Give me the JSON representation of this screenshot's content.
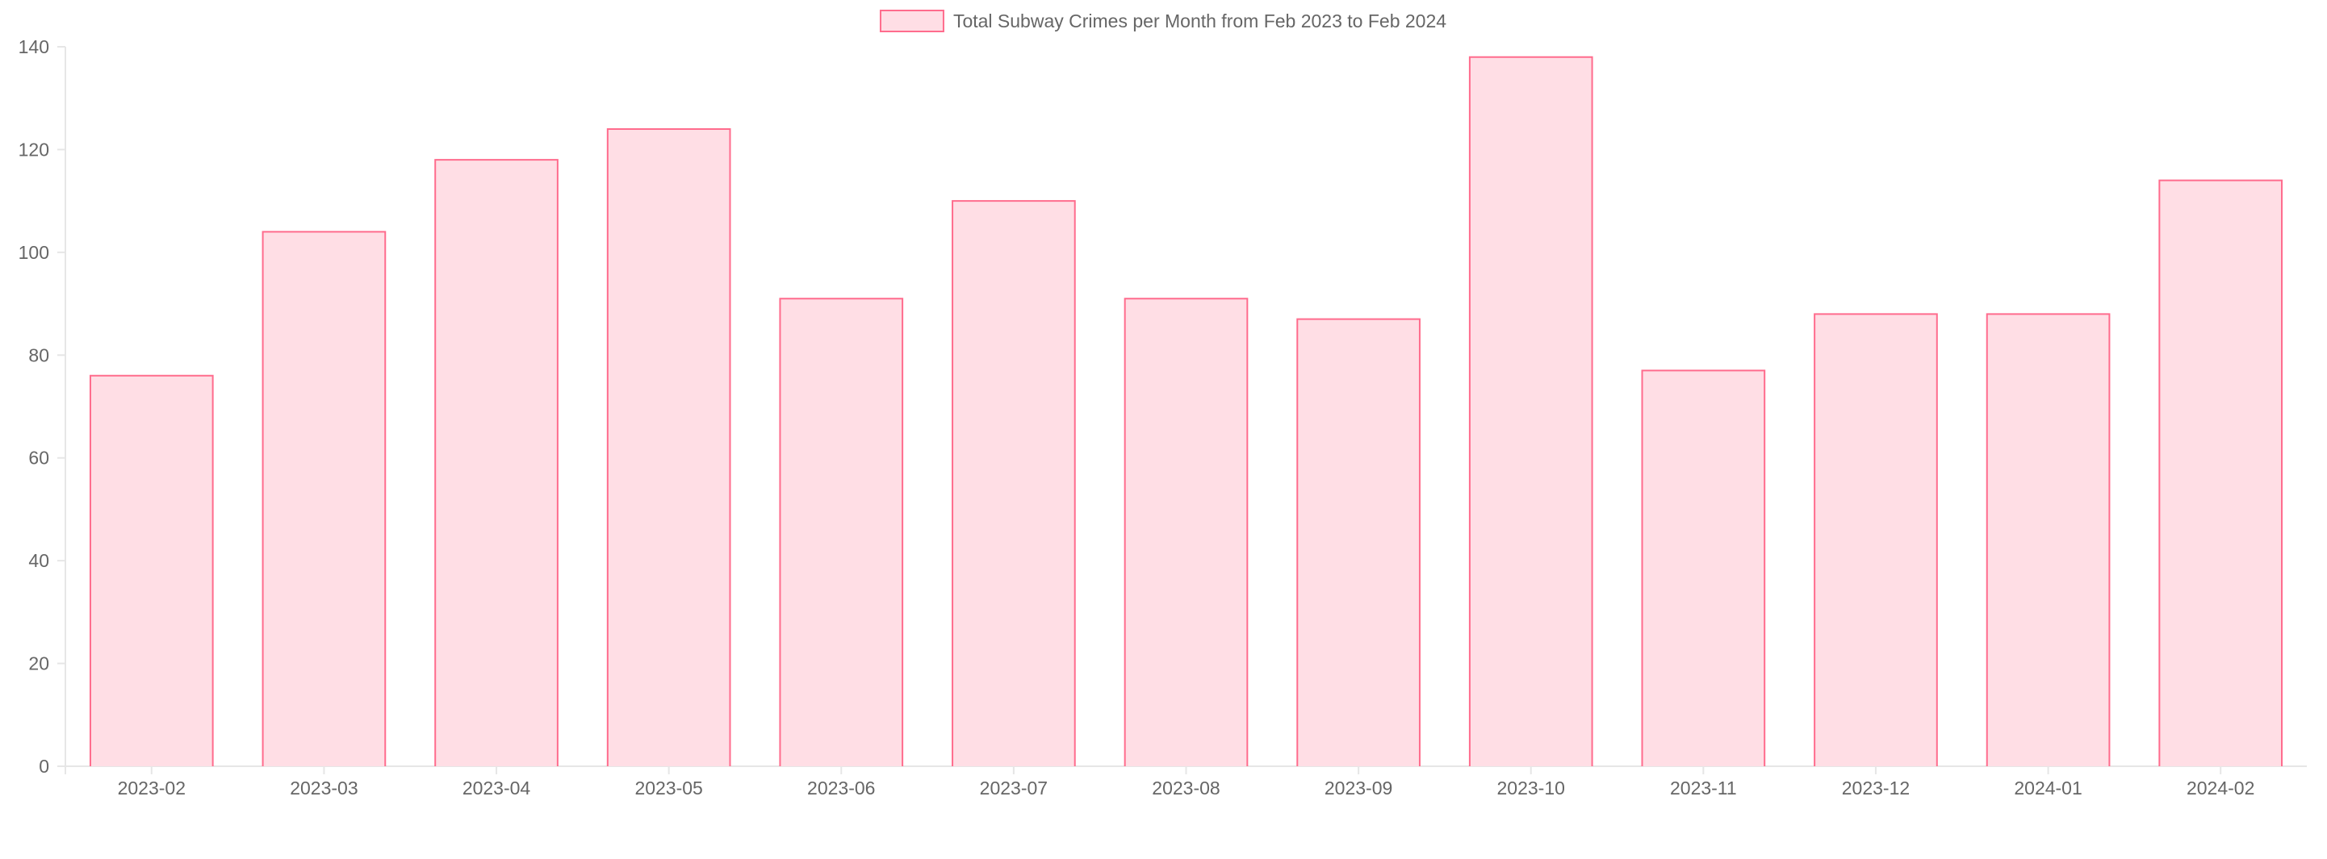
{
  "chart_data": {
    "type": "bar",
    "title": "",
    "xlabel": "",
    "ylabel": "",
    "categories": [
      "2023-02",
      "2023-03",
      "2023-04",
      "2023-05",
      "2023-06",
      "2023-07",
      "2023-08",
      "2023-09",
      "2023-10",
      "2023-11",
      "2023-12",
      "2024-01",
      "2024-02"
    ],
    "series": [
      {
        "name": "Total Subway Crimes per Month from Feb 2023 to Feb 2024",
        "values": [
          76,
          104,
          118,
          124,
          91,
          110,
          91,
          87,
          138,
          77,
          88,
          88,
          114
        ],
        "fill_color": "#ffdee5",
        "border_color": "#ff6c8d"
      }
    ],
    "ylim": [
      0,
      140
    ],
    "yticks": [
      0,
      20,
      40,
      60,
      80,
      100,
      120,
      140
    ],
    "grid": false,
    "legend_position": "top-center"
  }
}
